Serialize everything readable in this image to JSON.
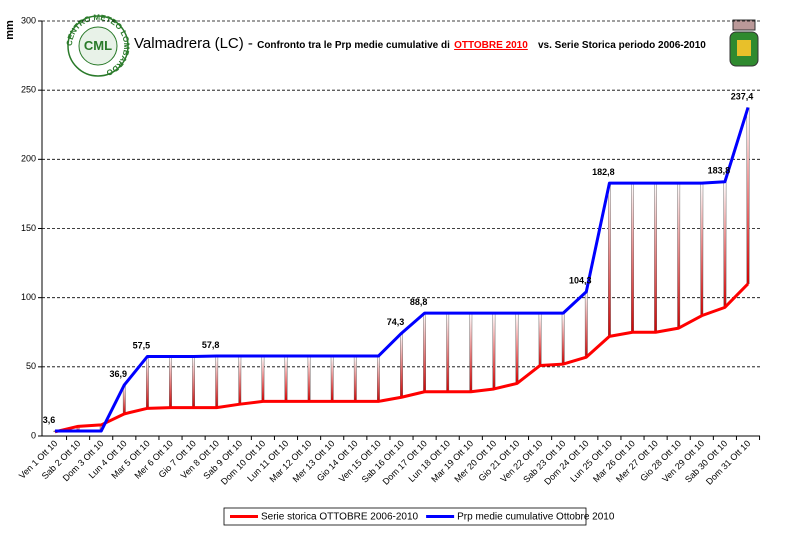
{
  "chart_data": {
    "type": "line",
    "logo_text": "CML",
    "logo_ring": "CENTRO METEO LOMBARDO",
    "title_place": "Valmadrera (LC) -",
    "title_main": "Confronto tra le Prp medie cumulative di",
    "title_highlight": "OTTOBRE 2010",
    "title_tail": "vs. Serie Storica periodo 2006-2010",
    "y_label": "mm",
    "categories": [
      "Ven 1 Ott 10",
      "Sab 2 Ott 10",
      "Dom 3 Ott 10",
      "Lun 4 Ott 10",
      "Mar 5 Ott 10",
      "Mer 6 Ott 10",
      "Gio 7 Ott 10",
      "Ven 8 Ott 10",
      "Sab 9 Ott 10",
      "Dom 10 Ott 10",
      "Lun 11 Ott 10",
      "Mar 12 Ott 10",
      "Mer 13 Ott 10",
      "Gio 14 Ott 10",
      "Ven 15 Ott 10",
      "Sab 16 Ott 10",
      "Dom 17 Ott 10",
      "Lun 18 Ott 10",
      "Mar 19 Ott 10",
      "Mer 20 Ott 10",
      "Gio 21 Ott 10",
      "Ven 22 Ott 10",
      "Sab 23 Ott 10",
      "Dom 24 Ott 10",
      "Lun 25 Ott 10",
      "Mar 26 Ott 10",
      "Mer 27 Ott 10",
      "Gio 28 Ott 10",
      "Ven 29 Ott 10",
      "Sab 30 Ott 10",
      "Dom 31 Ott 10"
    ],
    "series": [
      {
        "name": "Serie storica OTTOBRE 2006-2010",
        "color": "#ff0000",
        "values": [
          3,
          7,
          8,
          16,
          20,
          20.5,
          20.5,
          20.5,
          23,
          25,
          25,
          25,
          25,
          25,
          25,
          28,
          32,
          32,
          32,
          34,
          38,
          51,
          52,
          57,
          72,
          75,
          75,
          78,
          87,
          93,
          110
        ]
      },
      {
        "name": "Prp medie cumulative Ottobre 2010",
        "color": "#0000ff",
        "values": [
          3.6,
          3.6,
          3.6,
          36.9,
          57.5,
          57.5,
          57.5,
          57.8,
          57.8,
          57.8,
          57.8,
          57.8,
          57.8,
          57.8,
          57.8,
          74.3,
          88.8,
          88.8,
          88.8,
          88.8,
          88.8,
          88.8,
          88.8,
          104.3,
          182.8,
          182.8,
          182.8,
          182.8,
          182.8,
          183.8,
          237.4
        ],
        "value_labels": [
          "3,6",
          null,
          null,
          "36,9",
          "57,5",
          null,
          null,
          "57,8",
          null,
          null,
          null,
          null,
          null,
          null,
          null,
          "74,3",
          "88,8",
          null,
          null,
          null,
          null,
          null,
          null,
          "104,3",
          "182,8",
          null,
          null,
          null,
          null,
          "183,8",
          "237,4"
        ]
      }
    ],
    "ylim": [
      0,
      300
    ],
    "yticks": [
      0,
      50,
      100,
      150,
      200,
      250,
      300
    ],
    "grid": true,
    "droplines": true,
    "legend": "bottom"
  }
}
